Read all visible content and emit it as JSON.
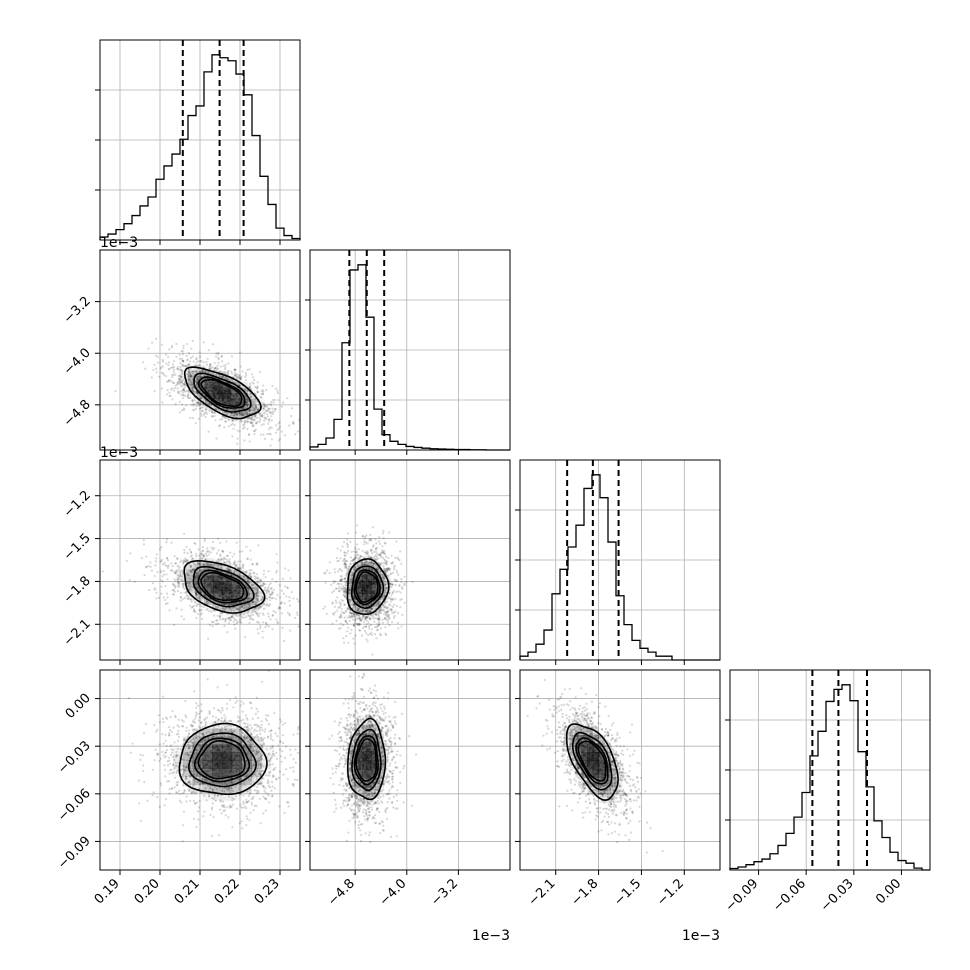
{
  "theme": {
    "frame": "#000000",
    "grid": "#b0b0b0",
    "hist": "#000000",
    "quantile": "#000000",
    "contour": "#000000",
    "density": "#000000",
    "scatter": "#000000"
  },
  "chart_data": {
    "type": "corner",
    "parameters": [
      {
        "range": [
          0.185,
          0.235
        ],
        "ticks": [
          0.19,
          0.2,
          0.21,
          0.22,
          0.23
        ],
        "tick_labels": [
          "0.19",
          "0.20",
          "0.21",
          "0.22",
          "0.23"
        ],
        "offset": ""
      },
      {
        "range": [
          -5.5,
          -2.4
        ],
        "ticks": [
          -4.8,
          -4.0,
          -3.2
        ],
        "tick_labels": [
          "−4.8",
          "−4.0",
          "−3.2"
        ],
        "offset": "1e−3"
      },
      {
        "range": [
          -2.35,
          -0.95
        ],
        "ticks": [
          -2.1,
          -1.8,
          -1.5,
          -1.2
        ],
        "tick_labels": [
          "−2.1",
          "−1.8",
          "−1.5",
          "−1.2"
        ],
        "offset": "1e−3"
      },
      {
        "range": [
          -0.108,
          0.018
        ],
        "ticks": [
          -0.09,
          -0.06,
          -0.03,
          0.0
        ],
        "tick_labels": [
          "−0.09",
          "−0.06",
          "−0.03",
          "0.00"
        ],
        "offset": ""
      }
    ],
    "histograms": [
      {
        "bins": [
          0.185,
          0.187,
          0.189,
          0.191,
          0.193,
          0.195,
          0.197,
          0.199,
          0.201,
          0.203,
          0.205,
          0.207,
          0.209,
          0.211,
          0.213,
          0.215,
          0.217,
          0.219,
          0.221,
          0.223,
          0.225,
          0.227,
          0.229,
          0.231,
          0.233,
          0.235
        ],
        "counts": [
          4,
          8,
          14,
          22,
          33,
          46,
          58,
          82,
          100,
          116,
          136,
          168,
          181,
          227,
          250,
          246,
          242,
          224,
          196,
          141,
          86,
          48,
          16,
          6,
          2
        ],
        "quantiles": [
          0.2057,
          0.2149,
          0.2209
        ]
      },
      {
        "bins": [
          -5.5,
          -5.376,
          -5.252,
          -5.128,
          -5.004,
          -4.88,
          -4.756,
          -4.632,
          -4.508,
          -4.384,
          -4.26,
          -4.136,
          -4.012,
          -3.888,
          -3.764,
          -3.64,
          -3.516,
          -3.392,
          -3.268,
          -3.144,
          -3.02,
          -2.896,
          -2.772,
          -2.648,
          -2.524,
          -2.4
        ],
        "counts": [
          12,
          22,
          47,
          120,
          420,
          705,
          725,
          520,
          160,
          60,
          34,
          22,
          14,
          10,
          7,
          5,
          4,
          3,
          2,
          2,
          1,
          1,
          0,
          0,
          0
        ],
        "quantiles": [
          -4.89,
          -4.62,
          -4.35
        ]
      },
      {
        "bins": [
          -2.35,
          -2.294,
          -2.238,
          -2.182,
          -2.126,
          -2.07,
          -2.014,
          -1.958,
          -1.902,
          -1.846,
          -1.79,
          -1.734,
          -1.678,
          -1.622,
          -1.566,
          -1.51,
          -1.454,
          -1.398,
          -1.342,
          -1.286,
          -1.23,
          -1.174,
          -1.118,
          -1.062,
          -1.006,
          -0.95
        ],
        "counts": [
          14,
          29,
          58,
          110,
          243,
          333,
          415,
          495,
          630,
          680,
          596,
          433,
          236,
          130,
          72,
          43,
          29,
          14,
          14,
          0,
          0,
          0,
          0,
          0,
          0
        ],
        "quantiles": [
          -2.02,
          -1.84,
          -1.66
        ]
      },
      {
        "bins": [
          -0.108,
          -0.10296,
          -0.09792,
          -0.09288,
          -0.08784,
          -0.0828,
          -0.07776,
          -0.07272,
          -0.06768,
          -0.06264,
          -0.0576,
          -0.05256,
          -0.04752,
          -0.04248,
          -0.03744,
          -0.0324,
          -0.02736,
          -0.02232,
          -0.01728,
          -0.01224,
          -0.0072,
          -0.00216,
          0.00288,
          0.00792,
          0.01296,
          0.018
        ],
        "counts": [
          4,
          8,
          14,
          22,
          29,
          43,
          65,
          97,
          140,
          205,
          302,
          367,
          446,
          478,
          490,
          448,
          313,
          220,
          130,
          86,
          47,
          25,
          18,
          5,
          0
        ],
        "quantiles": [
          -0.0561,
          -0.0397,
          -0.0217
        ]
      }
    ],
    "pairs": [
      {
        "row": 1,
        "col": 0,
        "mean": [
          0.2155,
          -4.62
        ],
        "sd": [
          0.0068,
          0.28
        ],
        "rho": -0.6
      },
      {
        "row": 2,
        "col": 0,
        "mean": [
          0.2155,
          -1.84
        ],
        "sd": [
          0.0072,
          0.13
        ],
        "rho": -0.4
      },
      {
        "row": 2,
        "col": 1,
        "mean": [
          -4.62,
          -1.84
        ],
        "sd": [
          0.23,
          0.14
        ],
        "rho": 0.05
      },
      {
        "row": 3,
        "col": 0,
        "mean": [
          0.2155,
          -0.039
        ],
        "sd": [
          0.0078,
          0.016
        ],
        "rho": 0.0
      },
      {
        "row": 3,
        "col": 1,
        "mean": [
          -4.62,
          -0.039
        ],
        "sd": [
          0.21,
          0.018
        ],
        "rho": 0.05
      },
      {
        "row": 3,
        "col": 2,
        "mean": [
          -1.84,
          -0.039
        ],
        "sd": [
          0.13,
          0.017
        ],
        "rho": -0.55
      }
    ],
    "contour_levels_sigma": [
      0.5,
      1.0,
      1.5,
      2.0
    ],
    "grid": true
  }
}
